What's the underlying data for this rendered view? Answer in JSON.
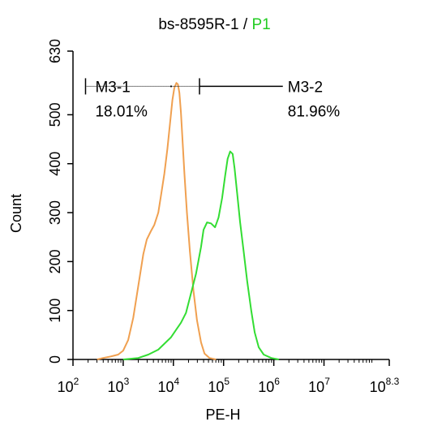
{
  "chart_data": {
    "type": "line",
    "title": {
      "sample": "bs-8595R-1",
      "separator": " / ",
      "gate": "P1"
    },
    "xlabel": "PE-H",
    "ylabel": "Count",
    "x_scale": "log10",
    "xlim": [
      2,
      8.3
    ],
    "ylim": [
      0,
      630
    ],
    "x_ticks": [
      {
        "base": "10",
        "exp": "2",
        "value": 2
      },
      {
        "base": "10",
        "exp": "3",
        "value": 3
      },
      {
        "base": "10",
        "exp": "4",
        "value": 4
      },
      {
        "base": "10",
        "exp": "5",
        "value": 5
      },
      {
        "base": "10",
        "exp": "6",
        "value": 6
      },
      {
        "base": "10",
        "exp": "7",
        "value": 7
      },
      {
        "base": "10",
        "exp": "8.3",
        "value": 8.3
      }
    ],
    "y_ticks": [
      "0",
      "100",
      "200",
      "300",
      "400",
      "500",
      "630"
    ],
    "y_tick_values": [
      0,
      100,
      200,
      300,
      400,
      500,
      630
    ],
    "grid": false,
    "series": [
      {
        "color": "#f0a050",
        "log_x": [
          2.48,
          2.6,
          2.75,
          2.9,
          3.0,
          3.1,
          3.2,
          3.3,
          3.4,
          3.47,
          3.55,
          3.62,
          3.7,
          3.76,
          3.82,
          3.88,
          3.93,
          3.98,
          4.02,
          4.06,
          4.09,
          4.12,
          4.15,
          4.18,
          4.22,
          4.27,
          4.33,
          4.4,
          4.47,
          4.55,
          4.62,
          4.72,
          4.85
        ],
        "values": [
          0,
          3,
          6,
          10,
          18,
          40,
          85,
          150,
          215,
          245,
          262,
          275,
          300,
          340,
          380,
          430,
          480,
          530,
          555,
          565,
          562,
          545,
          505,
          450,
          380,
          300,
          220,
          140,
          80,
          35,
          12,
          3,
          0
        ]
      },
      {
        "color": "#33dd33",
        "log_x": [
          3.0,
          3.3,
          3.5,
          3.7,
          3.85,
          3.95,
          4.05,
          4.15,
          4.25,
          4.35,
          4.45,
          4.55,
          4.6,
          4.67,
          4.75,
          4.83,
          4.9,
          4.97,
          5.03,
          5.08,
          5.13,
          5.18,
          5.22,
          5.27,
          5.33,
          5.4,
          5.47,
          5.55,
          5.62,
          5.7,
          5.8,
          5.95,
          6.1
        ],
        "values": [
          0,
          3,
          10,
          20,
          35,
          45,
          60,
          75,
          95,
          135,
          175,
          230,
          265,
          280,
          278,
          270,
          290,
          330,
          375,
          410,
          425,
          420,
          390,
          340,
          280,
          220,
          160,
          100,
          55,
          25,
          10,
          3,
          0
        ]
      }
    ],
    "markers": [
      {
        "name": "M3-1",
        "percent": "18.01%",
        "log_range": [
          2.25,
          4.52
        ]
      },
      {
        "name": "M3-2",
        "percent": "81.96%",
        "log_range": [
          4.52,
          6.18
        ]
      }
    ],
    "marker_y": 558
  }
}
